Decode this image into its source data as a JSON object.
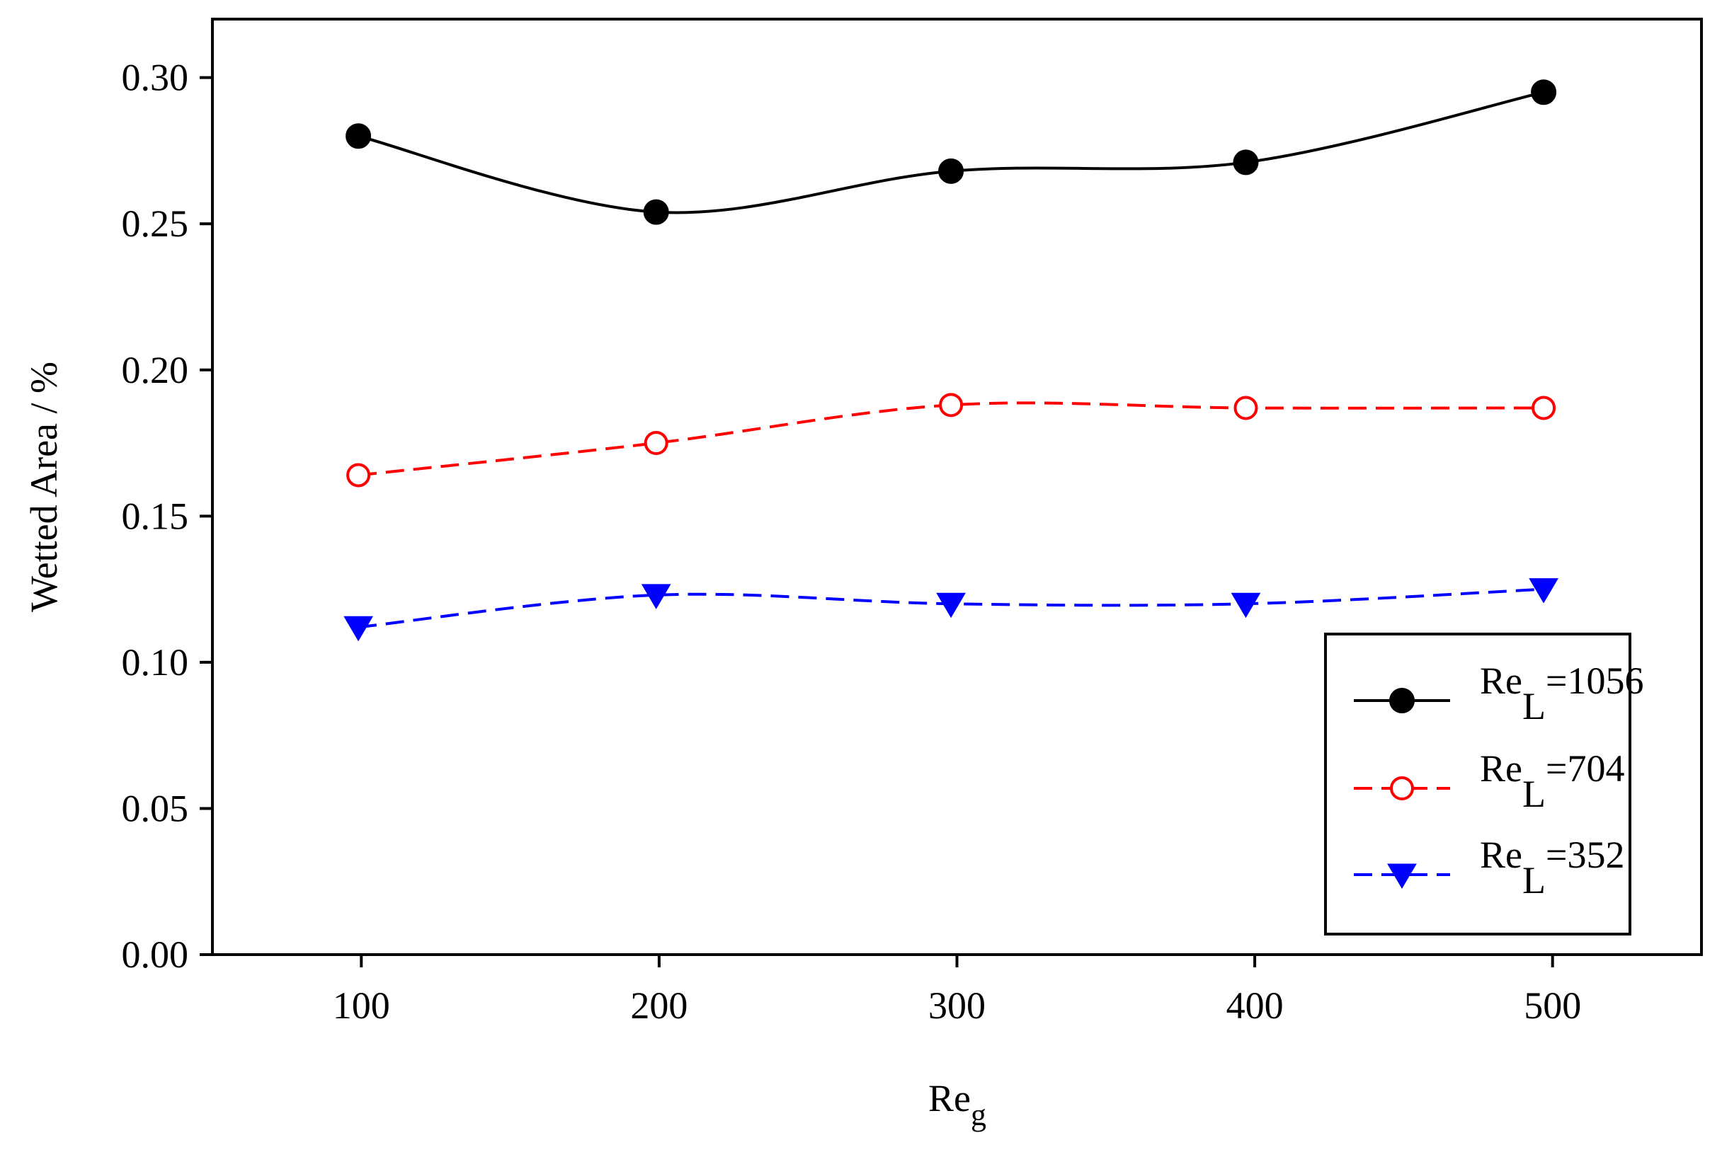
{
  "chart_data": {
    "type": "line",
    "title": "",
    "xlabel": "Re",
    "xlabel_sub": "g",
    "ylabel": "Wetted Area / %",
    "xlim": [
      50,
      550
    ],
    "ylim": [
      0,
      0.32
    ],
    "xticks": [
      100,
      200,
      300,
      400,
      500
    ],
    "xtick_labels": [
      "100",
      "200",
      "300",
      "400",
      "500"
    ],
    "yticks": [
      0,
      0.05,
      0.1,
      0.15,
      0.2,
      0.25,
      0.3
    ],
    "ytick_labels": [
      "0.00",
      "0.05",
      "0.10",
      "0.15",
      "0.20",
      "0.25",
      "0.30"
    ],
    "grid": false,
    "legend_position": "bottom-right",
    "series": [
      {
        "name": "Re_L=1056",
        "label_main": "Re",
        "label_sub": "L",
        "label_value": "=1056",
        "color": "#000000",
        "line_style": "solid",
        "marker": "filled-circle",
        "x": [
          99,
          199,
          298,
          397,
          497
        ],
        "values": [
          0.28,
          0.254,
          0.268,
          0.271,
          0.295
        ]
      },
      {
        "name": "Re_L=704",
        "label_main": "Re",
        "label_sub": "L",
        "label_value": "=704",
        "color": "#ff0000",
        "line_style": "dashed",
        "marker": "open-circle",
        "x": [
          99,
          199,
          298,
          397,
          497
        ],
        "values": [
          0.164,
          0.175,
          0.188,
          0.187,
          0.187
        ]
      },
      {
        "name": "Re_L=352",
        "label_main": "Re",
        "label_sub": "L",
        "label_value": "=352",
        "color": "#0000ff",
        "line_style": "dashed",
        "marker": "filled-triangle-down",
        "x": [
          99,
          199,
          298,
          397,
          497
        ],
        "values": [
          0.112,
          0.123,
          0.12,
          0.12,
          0.125
        ]
      }
    ]
  }
}
